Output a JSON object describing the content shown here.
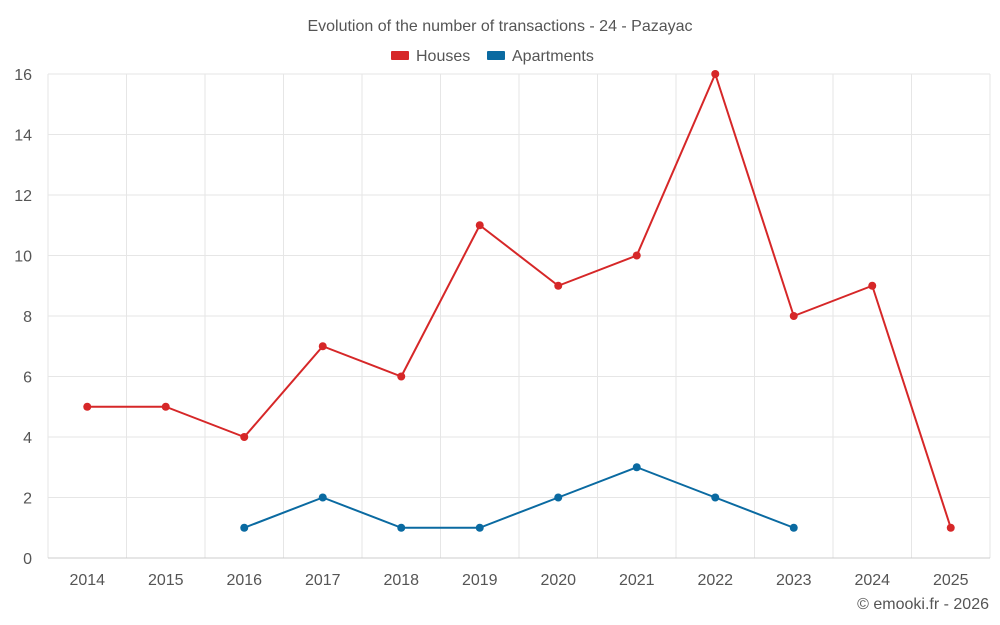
{
  "chart_data": {
    "type": "line",
    "title": "Evolution of the number of transactions - 24 - Pazayac",
    "categories": [
      "2014",
      "2015",
      "2016",
      "2017",
      "2018",
      "2019",
      "2020",
      "2021",
      "2022",
      "2023",
      "2024",
      "2025"
    ],
    "series": [
      {
        "name": "Houses",
        "color": "#d62728",
        "values": [
          5,
          5,
          4,
          7,
          6,
          11,
          9,
          10,
          16,
          8,
          9,
          1
        ]
      },
      {
        "name": "Apartments",
        "color": "#0a6aa1",
        "values": [
          null,
          null,
          1,
          2,
          1,
          1,
          2,
          3,
          2,
          1,
          null,
          null
        ]
      }
    ],
    "yticks": [
      0,
      2,
      4,
      6,
      8,
      10,
      12,
      14,
      16
    ],
    "ylim": [
      0,
      16
    ],
    "xlabel": "",
    "ylabel": "",
    "grid": true,
    "legend_position": "top-center"
  },
  "credit": "© emooki.fr - 2026"
}
